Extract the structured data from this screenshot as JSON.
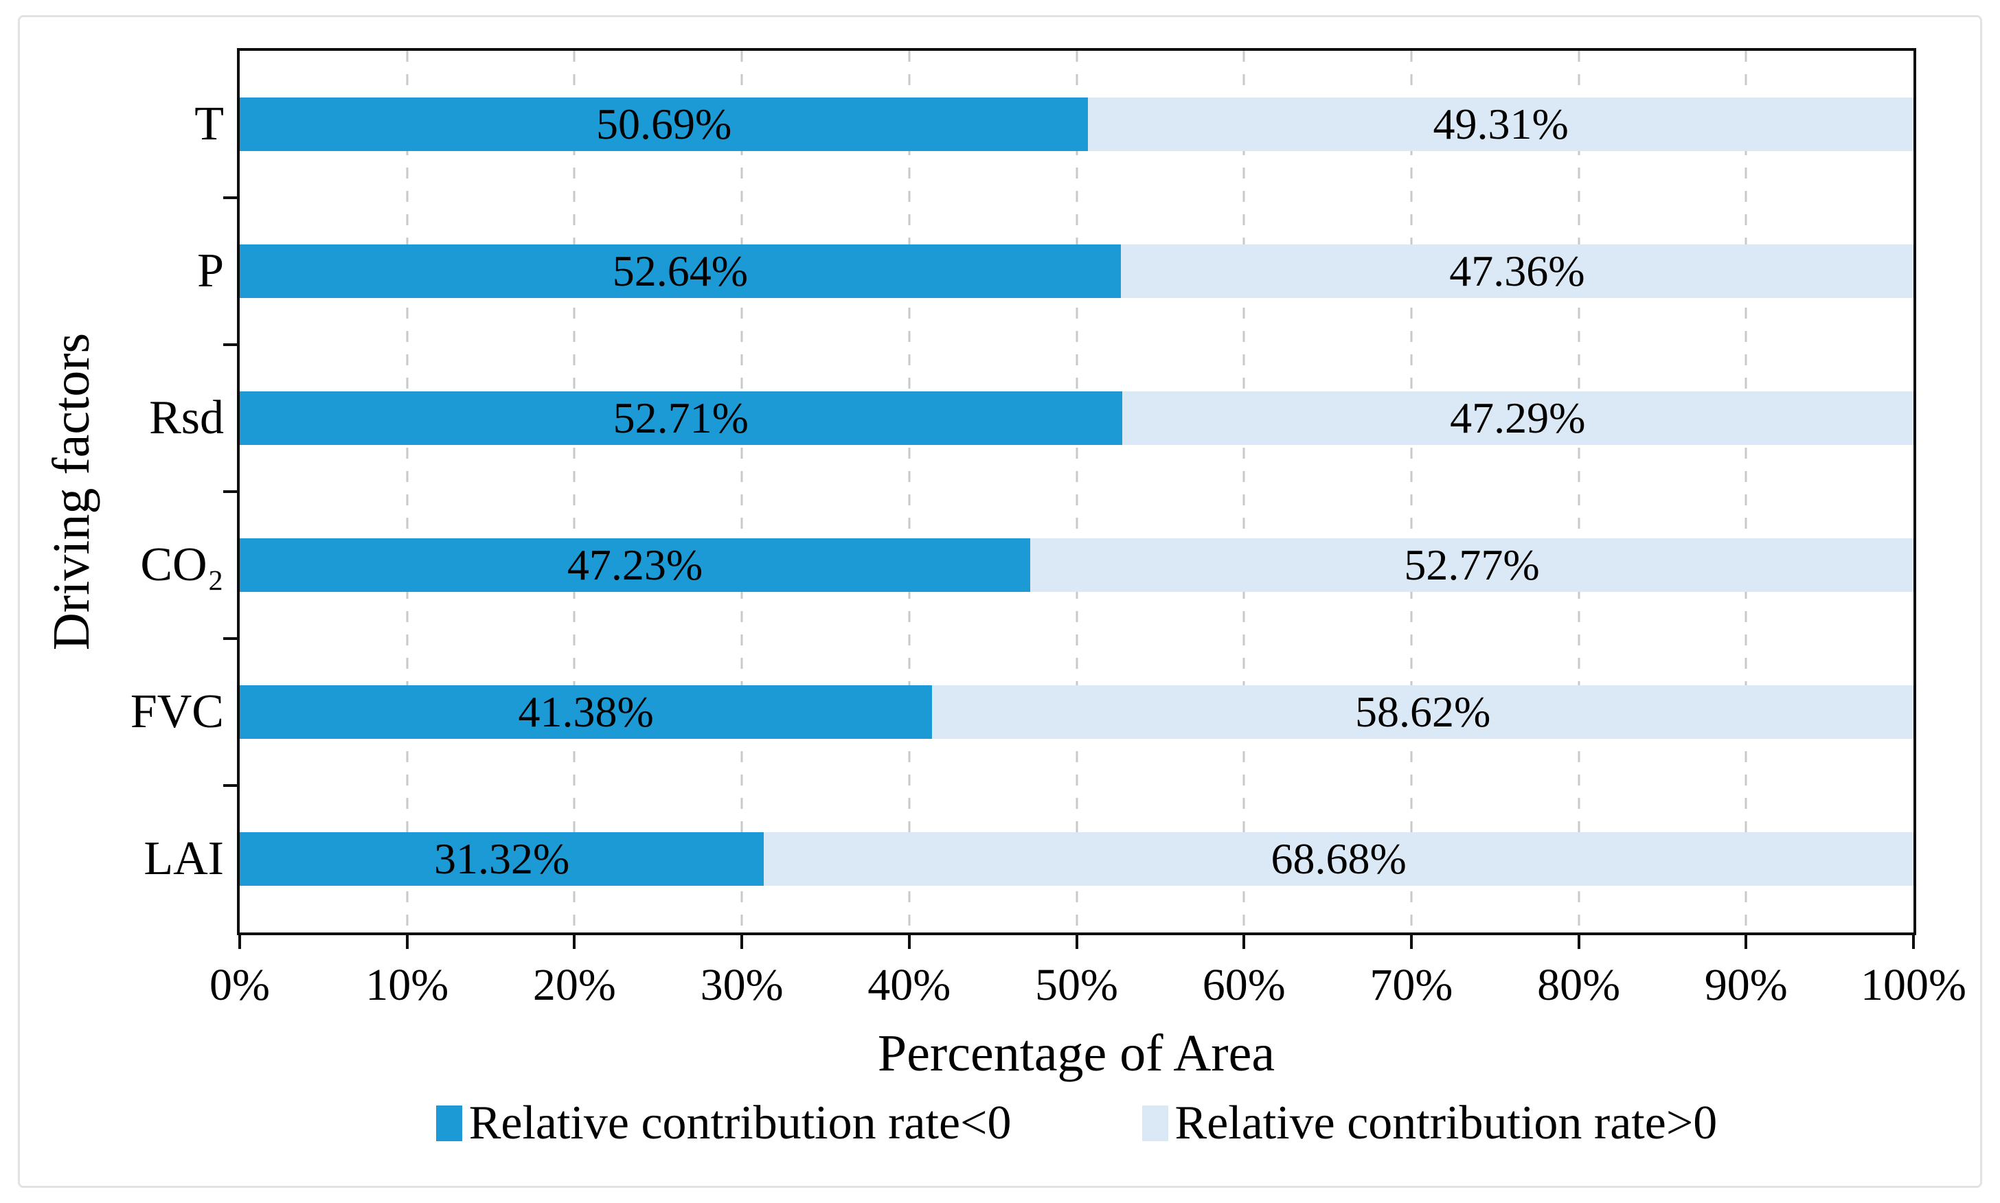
{
  "page": {
    "background_color": "#ffffff",
    "card_border_color": "#e2e2e2"
  },
  "chart_data": {
    "type": "bar",
    "orientation": "horizontal",
    "stacked": true,
    "xlabel": "Percentage of Area",
    "ylabel": "Driving factors",
    "categories": [
      "T",
      "P",
      "Rsd",
      "CO₂",
      "FVC",
      "LAI"
    ],
    "series": [
      {
        "name": "Relative contribution rate<0",
        "color": "#1b9ad6",
        "values": [
          50.69,
          52.64,
          52.71,
          47.23,
          41.38,
          31.32
        ],
        "labels": [
          "50.69%",
          "52.64%",
          "52.71%",
          "47.23%",
          "41.38%",
          "31.32%"
        ]
      },
      {
        "name": "Relative contribution rate>0",
        "color": "#dbe8f5",
        "values": [
          49.31,
          47.36,
          47.29,
          52.77,
          58.62,
          68.68
        ],
        "labels": [
          "49.31%",
          "47.36%",
          "47.29%",
          "52.77%",
          "58.62%",
          "68.68%"
        ]
      }
    ],
    "x_tick_labels": [
      "0%",
      "10%",
      "20%",
      "30%",
      "40%",
      "50%",
      "60%",
      "70%",
      "80%",
      "90%",
      "100%"
    ],
    "xlim": [
      0,
      100
    ],
    "grid": {
      "vertical_dashed": true,
      "color": "#c9c9c9"
    },
    "axis_color": "#0d0d0d",
    "text_color": "#000000",
    "legend_position": "bottom"
  }
}
